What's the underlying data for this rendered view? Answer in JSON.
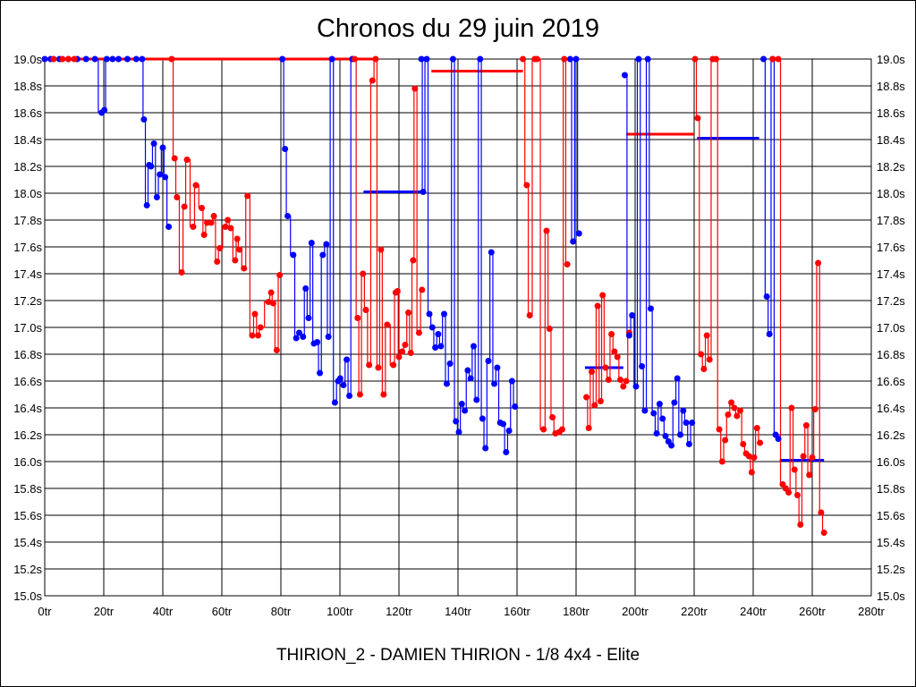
{
  "chart_data": {
    "type": "line",
    "title": "Chronos du 29 juin 2019",
    "subtitle": "THIRION_2 - DAMIEN THIRION - 1/8 4x4 - Elite",
    "xlabel": "",
    "ylabel": "",
    "xlim": [
      0,
      280
    ],
    "ylim": [
      15.0,
      19.0
    ],
    "x_ticks": [
      "0tr",
      "20tr",
      "40tr",
      "60tr",
      "80tr",
      "100tr",
      "120tr",
      "140tr",
      "160tr",
      "180tr",
      "200tr",
      "220tr",
      "240tr",
      "260tr",
      "280tr"
    ],
    "y_ticks": [
      "19.0s",
      "18.8s",
      "18.6s",
      "18.4s",
      "18.2s",
      "18.0s",
      "17.8s",
      "17.6s",
      "17.4s",
      "17.2s",
      "17.0s",
      "16.8s",
      "16.6s",
      "16.4s",
      "16.2s",
      "16.0s",
      "15.8s",
      "15.6s",
      "15.4s",
      "15.2s",
      "15.0s"
    ],
    "grid": true,
    "colors": {
      "blue": "#0000ff",
      "red": "#ff0000",
      "grid": "#000000"
    },
    "series": [
      {
        "name": "blue-1",
        "color": "blue",
        "points": [
          [
            0,
            19.0
          ],
          [
            2,
            19.0
          ],
          [
            5,
            19.0
          ],
          [
            8,
            19.0
          ],
          [
            11,
            19.0
          ],
          [
            14,
            19.0
          ],
          [
            17,
            19.0
          ],
          [
            19.3,
            18.6
          ],
          [
            20.2,
            18.62
          ],
          [
            21,
            19.0
          ],
          [
            23,
            19.0
          ],
          [
            25,
            19.0
          ],
          [
            28,
            19.0
          ],
          [
            31,
            19.0
          ],
          [
            33,
            19.0
          ],
          [
            33.6,
            18.55
          ],
          [
            34.6,
            17.91
          ],
          [
            35.4,
            18.21
          ],
          [
            36,
            18.2
          ],
          [
            37,
            18.37
          ],
          [
            38,
            17.97
          ],
          [
            39,
            18.14
          ],
          [
            40,
            18.34
          ],
          [
            40.8,
            18.12
          ],
          [
            42,
            17.75
          ]
        ]
      },
      {
        "name": "red-1",
        "color": "red",
        "points": [
          [
            3,
            19.0
          ],
          [
            6,
            19.0
          ],
          [
            8,
            19.0
          ],
          [
            10,
            19.0
          ],
          [
            43,
            19.0
          ],
          [
            44,
            18.26
          ],
          [
            44.8,
            17.97
          ],
          [
            46.4,
            17.41
          ],
          [
            47.3,
            17.9
          ],
          [
            48.2,
            18.25
          ],
          [
            50.3,
            17.75
          ],
          [
            51.2,
            18.06
          ],
          [
            53.2,
            17.89
          ],
          [
            54,
            17.69
          ],
          [
            55,
            17.78
          ],
          [
            56.4,
            17.78
          ],
          [
            57.3,
            17.83
          ],
          [
            58.4,
            17.49
          ],
          [
            59.3,
            17.59
          ],
          [
            61.2,
            17.75
          ],
          [
            62,
            17.8
          ],
          [
            63,
            17.74
          ],
          [
            64.5,
            17.5
          ],
          [
            65.2,
            17.66
          ],
          [
            66,
            17.58
          ],
          [
            67.5,
            17.44
          ],
          [
            68.7,
            17.98
          ],
          [
            70.3,
            16.94
          ],
          [
            71.2,
            17.1
          ],
          [
            72.3,
            16.94
          ],
          [
            73.1,
            17.0
          ],
          [
            75.8,
            17.19
          ],
          [
            76.7,
            17.26
          ],
          [
            77.4,
            17.18
          ],
          [
            78.6,
            16.83
          ],
          [
            79.6,
            17.39
          ]
        ]
      },
      {
        "name": "blue-2",
        "color": "blue",
        "points": [
          [
            80.5,
            19.0
          ],
          [
            81.4,
            18.33
          ],
          [
            82.3,
            17.83
          ],
          [
            84.2,
            17.54
          ],
          [
            85.2,
            16.92
          ],
          [
            86.2,
            16.96
          ],
          [
            87.5,
            16.93
          ],
          [
            88.4,
            17.29
          ],
          [
            89.4,
            17.07
          ],
          [
            90.4,
            17.63
          ],
          [
            91.2,
            16.88
          ],
          [
            92.3,
            16.89
          ],
          [
            93.2,
            16.66
          ],
          [
            94.2,
            17.54
          ],
          [
            95.4,
            17.62
          ],
          [
            96.1,
            16.93
          ],
          [
            97.3,
            19.0
          ],
          [
            98.3,
            16.44
          ],
          [
            99.4,
            16.6
          ],
          [
            100.1,
            16.62
          ],
          [
            101.2,
            16.57
          ],
          [
            102.3,
            16.76
          ],
          [
            103.2,
            16.49
          ],
          [
            104.2,
            19.0
          ]
        ]
      },
      {
        "name": "red-2",
        "color": "red",
        "points": [
          [
            105,
            19.0
          ],
          [
            106,
            17.07
          ],
          [
            106.8,
            16.5
          ],
          [
            107.8,
            17.4
          ],
          [
            108.8,
            17.13
          ],
          [
            109.9,
            16.72
          ],
          [
            111,
            18.84
          ],
          [
            112.1,
            19.0
          ],
          [
            113,
            16.7
          ],
          [
            113.9,
            17.58
          ],
          [
            114.8,
            16.5
          ],
          [
            116,
            17.02
          ],
          [
            118.1,
            16.72
          ],
          [
            118.9,
            17.26
          ],
          [
            119.5,
            17.27
          ],
          [
            120,
            16.78
          ],
          [
            121.1,
            16.82
          ],
          [
            122.1,
            16.87
          ],
          [
            123.2,
            17.11
          ],
          [
            124,
            16.81
          ],
          [
            124.8,
            17.5
          ],
          [
            125.4,
            18.78
          ],
          [
            126.8,
            16.96
          ],
          [
            127.8,
            17.28
          ]
        ]
      },
      {
        "name": "blue-3",
        "color": "blue",
        "points": [
          [
            127.6,
            19.0
          ],
          [
            128.2,
            18.01
          ],
          [
            129.4,
            19.0
          ],
          [
            130.3,
            17.1
          ],
          [
            131.3,
            17.0
          ],
          [
            132.3,
            16.85
          ],
          [
            133.3,
            16.95
          ],
          [
            134.2,
            16.86
          ],
          [
            135.3,
            17.1
          ],
          [
            136.2,
            16.58
          ],
          [
            137.3,
            16.73
          ],
          [
            138.3,
            19.0
          ],
          [
            139.3,
            16.3
          ],
          [
            140.3,
            16.22
          ],
          [
            141.3,
            16.43
          ],
          [
            142.3,
            16.38
          ],
          [
            143.3,
            16.68
          ],
          [
            144.3,
            16.62
          ],
          [
            145.3,
            16.86
          ],
          [
            146.3,
            16.46
          ],
          [
            147.5,
            19.0
          ],
          [
            148.3,
            16.32
          ],
          [
            149.3,
            16.1
          ],
          [
            150.3,
            16.75
          ],
          [
            151.3,
            17.56
          ],
          [
            152.3,
            16.58
          ],
          [
            153.3,
            16.7
          ],
          [
            154.3,
            16.29
          ],
          [
            155.3,
            16.28
          ],
          [
            156.3,
            16.07
          ],
          [
            157.3,
            16.23
          ],
          [
            158.3,
            16.6
          ],
          [
            159.3,
            16.41
          ]
        ]
      },
      {
        "name": "red-3",
        "color": "red",
        "points": [
          [
            162,
            19.0
          ],
          [
            163.3,
            18.06
          ],
          [
            164.3,
            17.09
          ],
          [
            166,
            19.0
          ],
          [
            166.8,
            19.0
          ],
          [
            169,
            16.24
          ],
          [
            170,
            17.72
          ],
          [
            171,
            16.99
          ],
          [
            172,
            16.33
          ],
          [
            173,
            16.21
          ],
          [
            174.3,
            16.22
          ],
          [
            175.3,
            16.24
          ],
          [
            176,
            19.0
          ],
          [
            177,
            17.47
          ]
        ]
      },
      {
        "name": "blue-4",
        "color": "blue",
        "points": [
          [
            178,
            19.0
          ],
          [
            179,
            17.64
          ],
          [
            180,
            19.0
          ],
          [
            181,
            17.7
          ]
        ]
      },
      {
        "name": "red-4",
        "color": "red",
        "points": [
          [
            183.5,
            16.48
          ],
          [
            184.3,
            16.25
          ],
          [
            185.3,
            16.67
          ],
          [
            186.3,
            16.42
          ],
          [
            187.3,
            17.16
          ],
          [
            188.3,
            16.45
          ],
          [
            189,
            17.24
          ],
          [
            190,
            16.7
          ],
          [
            191,
            16.61
          ],
          [
            192,
            16.95
          ],
          [
            193,
            16.82
          ],
          [
            194,
            16.78
          ],
          [
            195,
            16.61
          ],
          [
            196,
            16.56
          ],
          [
            197,
            16.6
          ],
          [
            198,
            16.96
          ]
        ]
      },
      {
        "name": "blue-5",
        "color": "blue",
        "points": [
          [
            196.5,
            18.88
          ],
          [
            198,
            16.94
          ],
          [
            199,
            17.09
          ],
          [
            200.3,
            16.56
          ],
          [
            201.2,
            19.0
          ],
          [
            202.3,
            16.71
          ],
          [
            203.3,
            16.38
          ],
          [
            204.3,
            19.0
          ],
          [
            205.3,
            17.14
          ],
          [
            206.3,
            16.36
          ],
          [
            207.3,
            16.21
          ],
          [
            208.3,
            16.43
          ],
          [
            209.3,
            16.32
          ],
          [
            210.3,
            16.19
          ],
          [
            211.3,
            16.15
          ],
          [
            212.3,
            16.12
          ],
          [
            213.3,
            16.44
          ],
          [
            214.3,
            16.62
          ],
          [
            215.3,
            16.2
          ],
          [
            216.3,
            16.38
          ],
          [
            217.3,
            16.29
          ],
          [
            218.3,
            16.13
          ],
          [
            219.3,
            16.29
          ]
        ]
      },
      {
        "name": "red-5",
        "color": "red",
        "points": [
          [
            220.3,
            19.0
          ],
          [
            221.2,
            18.56
          ],
          [
            222.3,
            16.8
          ],
          [
            223.3,
            16.69
          ],
          [
            224.3,
            16.94
          ],
          [
            225.2,
            16.76
          ],
          [
            226.3,
            19.0
          ],
          [
            227.4,
            19.0
          ],
          [
            228.5,
            16.24
          ],
          [
            229.5,
            16.0
          ],
          [
            230.5,
            16.16
          ],
          [
            231.5,
            16.35
          ],
          [
            232.6,
            16.44
          ],
          [
            233.6,
            16.4
          ],
          [
            234.5,
            16.34
          ],
          [
            235.6,
            16.38
          ],
          [
            236.6,
            16.13
          ],
          [
            237.6,
            16.06
          ],
          [
            238.6,
            16.04
          ],
          [
            239.5,
            15.92
          ],
          [
            240.3,
            16.03
          ],
          [
            241.3,
            16.25
          ],
          [
            242.3,
            16.14
          ]
        ]
      },
      {
        "name": "blue-6",
        "color": "blue",
        "points": [
          [
            243.5,
            19.0
          ],
          [
            244.6,
            17.23
          ],
          [
            245.5,
            16.95
          ],
          [
            246.6,
            19.0
          ],
          [
            247.6,
            16.2
          ],
          [
            248.5,
            16.17
          ]
        ]
      },
      {
        "name": "red-6",
        "color": "red",
        "points": [
          [
            246.6,
            19.0
          ],
          [
            248.5,
            19.0
          ],
          [
            250,
            15.83
          ],
          [
            251,
            15.8
          ],
          [
            252,
            15.77
          ],
          [
            253,
            16.4
          ],
          [
            254,
            15.94
          ],
          [
            255,
            15.75
          ],
          [
            256,
            15.53
          ],
          [
            257,
            16.04
          ],
          [
            258,
            16.27
          ],
          [
            259,
            15.9
          ],
          [
            260,
            16.03
          ],
          [
            261,
            16.39
          ],
          [
            262,
            17.48
          ],
          [
            263,
            15.62
          ],
          [
            264,
            15.47
          ]
        ]
      }
    ],
    "averages": [
      {
        "color": "red",
        "x": [
          0,
          112
        ],
        "y": 19.0
      },
      {
        "color": "blue",
        "x": [
          108,
          129
        ],
        "y": 18.01
      },
      {
        "color": "red",
        "x": [
          131,
          162
        ],
        "y": 18.91
      },
      {
        "color": "blue",
        "x": [
          183,
          196
        ],
        "y": 16.7
      },
      {
        "color": "red",
        "x": [
          197,
          220
        ],
        "y": 18.44
      },
      {
        "color": "blue",
        "x": [
          221,
          242
        ],
        "y": 18.41
      },
      {
        "color": "blue",
        "x": [
          249,
          264
        ],
        "y": 16.01
      }
    ]
  }
}
